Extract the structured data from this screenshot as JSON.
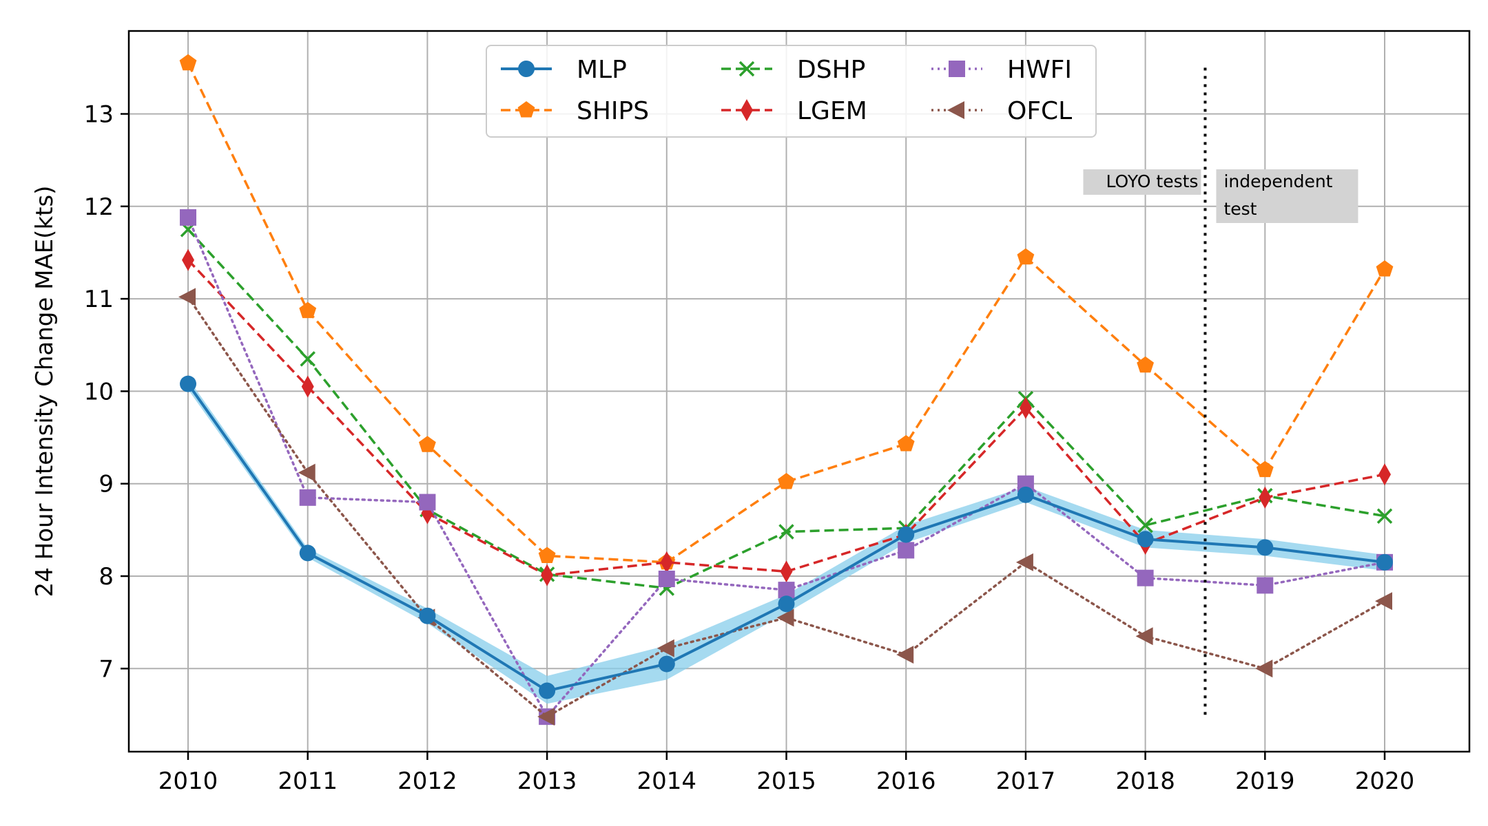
{
  "chart_data": {
    "type": "line",
    "title": "",
    "xlabel": "",
    "ylabel": "24 Hour Intensity Change MAE(kts)",
    "x": [
      2010,
      2011,
      2012,
      2013,
      2014,
      2015,
      2016,
      2017,
      2018,
      2019,
      2020
    ],
    "xticks": [
      "2010",
      "2011",
      "2012",
      "2013",
      "2014",
      "2015",
      "2016",
      "2017",
      "2018",
      "2019",
      "2020"
    ],
    "yticks": [
      "7",
      "8",
      "9",
      "10",
      "11",
      "12",
      "13"
    ],
    "xlim": [
      2009.5,
      2020.72
    ],
    "ylim": [
      6.1,
      13.92
    ],
    "grid": true,
    "legend_position": "top-center",
    "series": [
      {
        "name": "MLP",
        "color": "#1f77b4",
        "linestyle": "solid",
        "marker": "circle",
        "values": [
          10.08,
          8.25,
          7.57,
          6.76,
          7.05,
          7.7,
          8.45,
          8.88,
          8.4,
          8.31,
          8.15
        ],
        "band_low": [
          10.02,
          8.2,
          7.49,
          6.62,
          6.88,
          7.6,
          8.36,
          8.8,
          8.31,
          8.22,
          8.06
        ],
        "band_high": [
          10.14,
          8.3,
          7.65,
          6.92,
          7.25,
          7.8,
          8.55,
          8.97,
          8.5,
          8.4,
          8.23
        ],
        "band_color": "#87ceeb"
      },
      {
        "name": "SHIPS",
        "color": "#ff7f0e",
        "linestyle": "dashed",
        "marker": "pentagon",
        "values": [
          13.55,
          10.87,
          9.42,
          8.22,
          8.15,
          9.02,
          9.43,
          11.45,
          10.28,
          9.15,
          11.32
        ]
      },
      {
        "name": "DSHP",
        "color": "#2ca02c",
        "linestyle": "dashed",
        "marker": "x",
        "values": [
          11.75,
          10.35,
          8.72,
          8.02,
          7.87,
          8.48,
          8.52,
          9.92,
          8.55,
          8.87,
          8.65
        ]
      },
      {
        "name": "LGEM",
        "color": "#d62728",
        "linestyle": "dashed",
        "marker": "diamond",
        "values": [
          11.42,
          10.05,
          8.68,
          8.01,
          8.15,
          8.05,
          8.45,
          9.82,
          8.35,
          8.85,
          9.1
        ]
      },
      {
        "name": "HWFI",
        "color": "#9467bd",
        "linestyle": "dotted",
        "marker": "square",
        "values": [
          11.88,
          8.85,
          8.8,
          6.48,
          7.97,
          7.85,
          8.28,
          9.0,
          7.98,
          7.9,
          8.15
        ]
      },
      {
        "name": "OFCL",
        "color": "#8c564b",
        "linestyle": "dotted",
        "marker": "triangle-left",
        "values": [
          11.02,
          9.12,
          7.55,
          6.48,
          7.22,
          7.55,
          7.15,
          8.15,
          7.35,
          7.0,
          7.73
        ]
      }
    ],
    "annotations": {
      "divider_x": 2018.5,
      "divider_y_range": [
        6.5,
        13.5
      ],
      "left_note": "LOYO tests",
      "right_note_line1": "independent",
      "right_note_line2": "test"
    }
  }
}
